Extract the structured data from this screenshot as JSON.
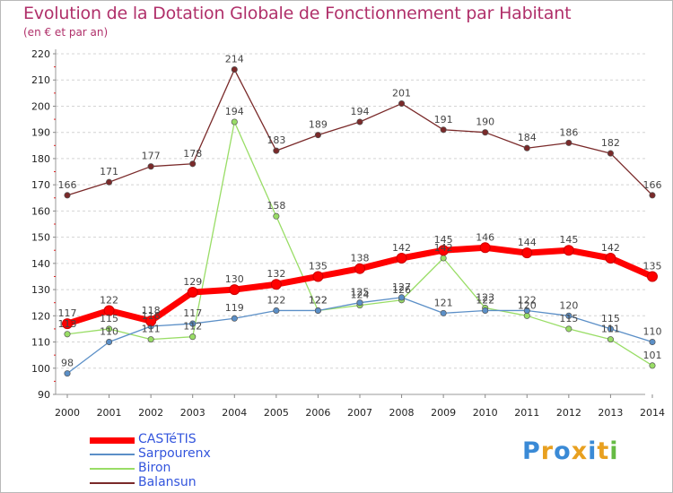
{
  "chart_data": {
    "type": "line",
    "title": "Evolution de la Dotation Globale de Fonctionnement par Habitant",
    "subtitle": "(en € et par an)",
    "x": [
      "2000",
      "2001",
      "2002",
      "2003",
      "2004",
      "2005",
      "2006",
      "2007",
      "2008",
      "2009",
      "2010",
      "2011",
      "2012",
      "2013",
      "2014"
    ],
    "yticks": [
      "90",
      "100",
      "110",
      "120",
      "130",
      "140",
      "150",
      "160",
      "170",
      "180",
      "190",
      "200",
      "210",
      "220"
    ],
    "ylim": [
      90,
      220
    ],
    "grid": "horizontal dashed",
    "legend_position": "bottom-left",
    "series": [
      {
        "name": "CASTéTIS",
        "color": "#ff0000",
        "values": [
          117,
          122,
          118,
          129,
          130,
          132,
          135,
          138,
          142,
          145,
          146,
          144,
          145,
          142,
          135
        ]
      },
      {
        "name": "Sarpourenx",
        "color": "#5b8fc7",
        "values": [
          98,
          110,
          116,
          117,
          119,
          122,
          122,
          125,
          127,
          121,
          122,
          122,
          120,
          115,
          110
        ]
      },
      {
        "name": "Biron",
        "color": "#99dd66",
        "values": [
          113,
          115,
          111,
          112,
          194,
          158,
          122,
          124,
          126,
          142,
          123,
          120,
          115,
          111,
          101
        ]
      },
      {
        "name": "Balansun",
        "color": "#7a2a2a",
        "values": [
          166,
          171,
          177,
          178,
          214,
          183,
          189,
          194,
          201,
          191,
          190,
          184,
          186,
          182,
          166
        ]
      }
    ]
  },
  "branding": {
    "logo_letters": [
      "P",
      "r",
      "o",
      "x",
      "i",
      "t",
      "i"
    ],
    "logo_colors": [
      "#3a8ad6",
      "#e8a020",
      "#3a8ad6",
      "#e8a020",
      "#3a8ad6",
      "#e8a020",
      "#66bb44"
    ]
  }
}
